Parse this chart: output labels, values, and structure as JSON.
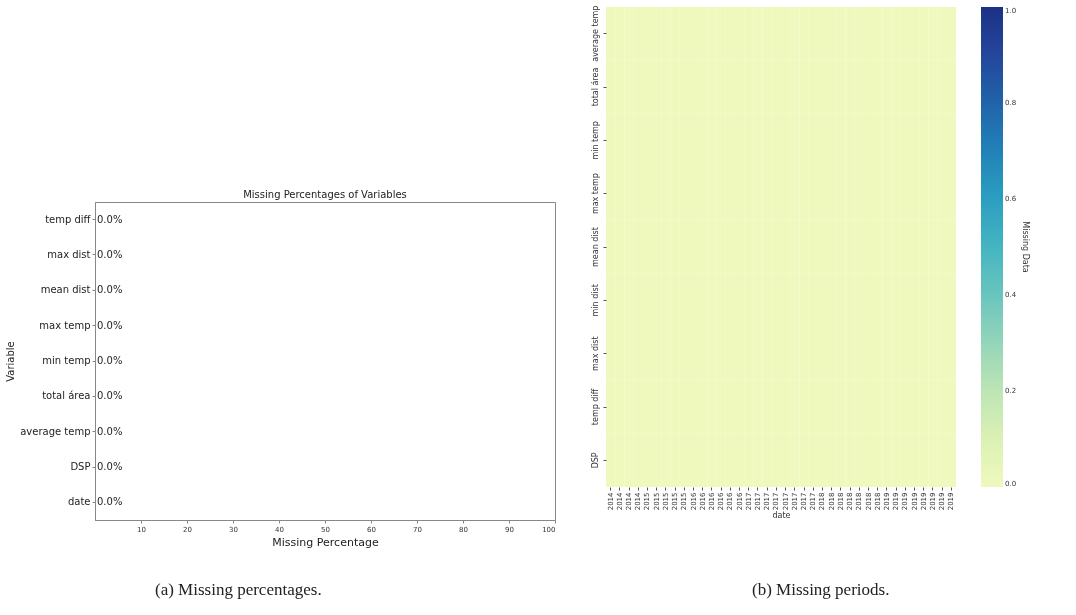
{
  "chart_data": [
    {
      "type": "bar",
      "orientation": "horizontal",
      "title": "Missing Percentages of Variables",
      "xlabel": "Missing Percentage",
      "ylabel": "Variable",
      "categories": [
        "temp diff",
        "max dist",
        "mean dist",
        "max temp",
        "min temp",
        "total área",
        "average temp",
        "DSP",
        "date"
      ],
      "values": [
        0,
        0,
        0,
        0,
        0,
        0,
        0,
        0,
        0
      ],
      "value_labels": [
        "0.0%",
        "0.0%",
        "0.0%",
        "0.0%",
        "0.0%",
        "0.0%",
        "0.0%",
        "0.0%",
        "0.0%"
      ],
      "xlim": [
        0,
        100
      ],
      "xticks": [
        10,
        20,
        30,
        40,
        50,
        60,
        70,
        80,
        90,
        100
      ],
      "grid": false,
      "annotations": [
        "(a) Missing percentages."
      ]
    },
    {
      "type": "heatmap",
      "xlabel": "date",
      "clabel": "Missing Data",
      "categories": [
        "2014",
        "2014",
        "2014",
        "2014",
        "2015",
        "2015",
        "2015",
        "2015",
        "2015",
        "2016",
        "2016",
        "2016",
        "2016",
        "2016",
        "2016",
        "2017",
        "2017",
        "2017",
        "2017",
        "2017",
        "2017",
        "2017",
        "2017",
        "2018",
        "2018",
        "2018",
        "2018",
        "2018",
        "2018",
        "2018",
        "2019",
        "2019",
        "2019",
        "2019",
        "2019",
        "2019",
        "2019",
        "2019"
      ],
      "y_categories": [
        "average temp",
        "total área",
        "min temp",
        "max temp",
        "mean dist",
        "min dist",
        "max dist",
        "temp diff",
        "DSP"
      ],
      "cells": [
        [
          0,
          0,
          0,
          0,
          0,
          0,
          0,
          0,
          0,
          0,
          0,
          0,
          0,
          0,
          0,
          0,
          0,
          0,
          0,
          0,
          0,
          0,
          0,
          0,
          0,
          0,
          0,
          0,
          0,
          0,
          0,
          0,
          0,
          0,
          0,
          0,
          0,
          0
        ],
        [
          0,
          0,
          0,
          0,
          0,
          0,
          0,
          0,
          0,
          0,
          0,
          0,
          0,
          0,
          0,
          0,
          0,
          0,
          0,
          0,
          0,
          0,
          0,
          0,
          0,
          0,
          0,
          0,
          0,
          0,
          0,
          0,
          0,
          0,
          0,
          0,
          0,
          0
        ],
        [
          0,
          0,
          0,
          0,
          0,
          0,
          0,
          0,
          0,
          0,
          0,
          0,
          0,
          0,
          0,
          0,
          0,
          0,
          0,
          0,
          0,
          0,
          0,
          0,
          0,
          0,
          0,
          0,
          0,
          0,
          0,
          0,
          0,
          0,
          0,
          0,
          0,
          0
        ],
        [
          0,
          0,
          0,
          0,
          0,
          0,
          0,
          0,
          0,
          0,
          0,
          0,
          0,
          0,
          0,
          0,
          0,
          0,
          0,
          0,
          0,
          0,
          0,
          0,
          0,
          0,
          0,
          0,
          0,
          0,
          0,
          0,
          0,
          0,
          0,
          0,
          0,
          0
        ],
        [
          0,
          0,
          0,
          0,
          0,
          0,
          0,
          0,
          0,
          0,
          0,
          0,
          0,
          0,
          0,
          0,
          0,
          0,
          0,
          0,
          0,
          0,
          0,
          0,
          0,
          0,
          0,
          0,
          0,
          0,
          0,
          0,
          0,
          0,
          0,
          0,
          0,
          0
        ],
        [
          0,
          0,
          0,
          0,
          0,
          0,
          0,
          0,
          0,
          0,
          0,
          0,
          0,
          0,
          0,
          0,
          0,
          0,
          0,
          0,
          0,
          0,
          0,
          0,
          0,
          0,
          0,
          0,
          0,
          0,
          0,
          0,
          0,
          0,
          0,
          0,
          0,
          0
        ],
        [
          0,
          0,
          0,
          0,
          0,
          0,
          0,
          0,
          0,
          0,
          0,
          0,
          0,
          0,
          0,
          0,
          0,
          0,
          0,
          0,
          0,
          0,
          0,
          0,
          0,
          0,
          0,
          0,
          0,
          0,
          0,
          0,
          0,
          0,
          0,
          0,
          0,
          0
        ],
        [
          0,
          0,
          0,
          0,
          0,
          0,
          0,
          0,
          0,
          0,
          0,
          0,
          0,
          0,
          0,
          0,
          0,
          0,
          0,
          0,
          0,
          0,
          0,
          0,
          0,
          0,
          0,
          0,
          0,
          0,
          0,
          0,
          0,
          0,
          0,
          0,
          0,
          0
        ],
        [
          0,
          0,
          0,
          0,
          0,
          0,
          0,
          0,
          0,
          0,
          0,
          0,
          0,
          0,
          0,
          0,
          0,
          0,
          0,
          0,
          0,
          0,
          0,
          0,
          0,
          0,
          0,
          0,
          0,
          0,
          0,
          0,
          0,
          0,
          0,
          0,
          0,
          0
        ]
      ],
      "clim": [
        0,
        1
      ],
      "cticks": [
        {
          "value": 0,
          "label": "0.0"
        },
        0.2,
        0.4,
        0.6,
        0.8,
        {
          "value": 1,
          "label": "1.0"
        }
      ],
      "annotations": [
        "(b) Missing periods."
      ]
    }
  ]
}
